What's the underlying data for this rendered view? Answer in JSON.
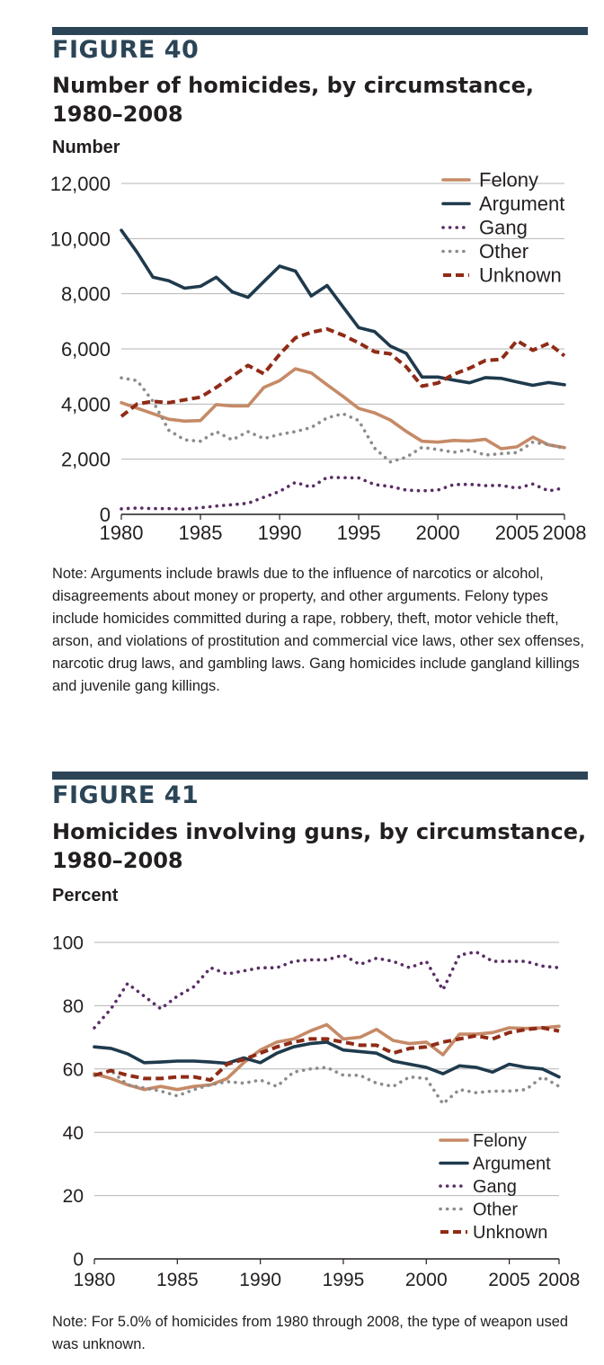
{
  "figures": [
    {
      "number": "FIGURE 40",
      "title": "Number of homicides, by circumstance, 1980–2008",
      "unit": "Number",
      "note": "Note: Arguments include brawls due to the influence of narcotics or alcohol, disagreements about money or property, and other arguments. Felony types include homicides committed during a rape, robbery, theft, motor vehicle theft, arson, and violations of prostitution and commercial vice laws, other sex offenses, narcotic drug laws, and gambling laws. Gang homicides include gangland killings and juvenile gang killings."
    },
    {
      "number": "FIGURE 41",
      "title": "Homicides involving guns, by circumstance, 1980–2008",
      "unit": "Percent",
      "note": "Note: For 5.0% of homicides from 1980 through 2008, the type of weapon used was unknown."
    }
  ],
  "colors": {
    "bar": "#2b4557",
    "felony": "#c68a67",
    "argument": "#1f3a4d",
    "gang": "#5a2d66",
    "other": "#8c8c8c",
    "unknown": "#8f2b16"
  },
  "chart_data": [
    {
      "type": "line",
      "title": "Number of homicides, by circumstance, 1980–2008",
      "ylabel": "Number",
      "x": [
        1980,
        1981,
        1982,
        1983,
        1984,
        1985,
        1986,
        1987,
        1988,
        1989,
        1990,
        1991,
        1992,
        1993,
        1994,
        1995,
        1996,
        1997,
        1998,
        1999,
        2000,
        2001,
        2002,
        2003,
        2004,
        2005,
        2006,
        2007,
        2008
      ],
      "xticks": [
        "1980",
        "1985",
        "1990",
        "1995",
        "2000",
        "2005",
        "2008"
      ],
      "xtick_values": [
        1980,
        1985,
        1990,
        1995,
        2000,
        2005,
        2008
      ],
      "yticks": [
        "0",
        "2,000",
        "4,000",
        "6,000",
        "8,000",
        "10,000",
        "12,000"
      ],
      "ylim": [
        0,
        12000
      ],
      "grid": true,
      "legend_position": "top-right",
      "series": [
        {
          "name": "Felony",
          "style": "solid",
          "color": "#c68a67",
          "values": [
            4050,
            3850,
            3650,
            3450,
            3380,
            3400,
            3980,
            3930,
            3930,
            4600,
            4850,
            5280,
            5130,
            4700,
            4280,
            3840,
            3680,
            3420,
            3010,
            2650,
            2620,
            2680,
            2660,
            2720,
            2380,
            2450,
            2800,
            2520,
            2420
          ]
        },
        {
          "name": "Argument",
          "style": "solid",
          "color": "#1f3a4d",
          "values": [
            10300,
            9500,
            8600,
            8470,
            8200,
            8270,
            8600,
            8070,
            7870,
            8440,
            9000,
            8820,
            7920,
            8300,
            7530,
            6770,
            6630,
            6100,
            5840,
            4980,
            4980,
            4870,
            4770,
            4960,
            4930,
            4800,
            4680,
            4780,
            4700
          ]
        },
        {
          "name": "Gang",
          "style": "dotted",
          "color": "#5a2d66",
          "values": [
            200,
            230,
            210,
            210,
            190,
            240,
            300,
            350,
            400,
            620,
            830,
            1160,
            980,
            1340,
            1330,
            1320,
            1080,
            1010,
            880,
            850,
            880,
            1080,
            1090,
            1040,
            1050,
            950,
            1100,
            850,
            960
          ]
        },
        {
          "name": "Other",
          "style": "dotted",
          "color": "#8c8c8c",
          "values": [
            4950,
            4850,
            4100,
            3050,
            2700,
            2650,
            3000,
            2700,
            3000,
            2750,
            2900,
            3000,
            3150,
            3500,
            3650,
            3400,
            2400,
            1900,
            2070,
            2430,
            2350,
            2250,
            2340,
            2150,
            2200,
            2240,
            2620,
            2530,
            2400
          ]
        },
        {
          "name": "Unknown",
          "style": "dashed",
          "color": "#8f2b16",
          "values": [
            3550,
            4000,
            4100,
            4050,
            4150,
            4250,
            4600,
            5000,
            5400,
            5100,
            5800,
            6400,
            6600,
            6720,
            6500,
            6220,
            5900,
            5820,
            5350,
            4650,
            4760,
            5080,
            5300,
            5580,
            5620,
            6300,
            5950,
            6200,
            5750
          ]
        }
      ]
    },
    {
      "type": "line",
      "title": "Homicides involving guns, by circumstance, 1980–2008",
      "ylabel": "Percent",
      "x": [
        1980,
        1981,
        1982,
        1983,
        1984,
        1985,
        1986,
        1987,
        1988,
        1989,
        1990,
        1991,
        1992,
        1993,
        1994,
        1995,
        1996,
        1997,
        1998,
        1999,
        2000,
        2001,
        2002,
        2003,
        2004,
        2005,
        2006,
        2007,
        2008
      ],
      "xticks": [
        "1980",
        "1985",
        "1990",
        "1995",
        "2000",
        "2005",
        "2008"
      ],
      "xtick_values": [
        1980,
        1985,
        1990,
        1995,
        2000,
        2005,
        2008
      ],
      "yticks": [
        "0",
        "20",
        "40",
        "60",
        "80",
        "100"
      ],
      "ylim": [
        0,
        100
      ],
      "grid": true,
      "legend_position": "bottom-right",
      "series": [
        {
          "name": "Felony",
          "style": "solid",
          "color": "#c68a67",
          "values": [
            58.5,
            57,
            55,
            53.5,
            54.5,
            53.5,
            54.5,
            55,
            57,
            62,
            66,
            68.5,
            69.5,
            72,
            74,
            69.5,
            70,
            72.5,
            69,
            68,
            68.5,
            64.5,
            71,
            71,
            71.5,
            73,
            72.8,
            73,
            73.5
          ]
        },
        {
          "name": "Argument",
          "style": "solid",
          "color": "#1f3a4d",
          "values": [
            67,
            66.5,
            64.8,
            62,
            62.2,
            62.5,
            62.5,
            62.2,
            61.8,
            63.5,
            62,
            65,
            67,
            68,
            68.5,
            66,
            65.5,
            65,
            62.5,
            61.5,
            60.5,
            58.5,
            61,
            60.5,
            59,
            61.5,
            60.5,
            60,
            57.5
          ]
        },
        {
          "name": "Gang",
          "style": "dotted",
          "color": "#5a2d66",
          "values": [
            73,
            79,
            87,
            83,
            79,
            83,
            86,
            92,
            90,
            91,
            92,
            92,
            94,
            94.5,
            94.5,
            96,
            93,
            95,
            94,
            92,
            94,
            85,
            96,
            97,
            94,
            94,
            94,
            92.5,
            92
          ]
        },
        {
          "name": "Other",
          "style": "dotted",
          "color": "#8c8c8c",
          "values": [
            58,
            59.5,
            55,
            54,
            53,
            51.5,
            53.5,
            55,
            56,
            55.5,
            56.5,
            54.5,
            59,
            60,
            60.5,
            58,
            58,
            55.5,
            54.5,
            57.5,
            57,
            49,
            53.5,
            52.5,
            53,
            53,
            53.5,
            57.5,
            54.5
          ]
        },
        {
          "name": "Unknown",
          "style": "dashed",
          "color": "#8f2b16",
          "values": [
            58,
            59.5,
            58,
            57,
            57,
            57.5,
            57.5,
            56.5,
            61.5,
            63,
            65,
            67,
            68.5,
            69.5,
            69.5,
            68.5,
            67.5,
            67.5,
            65,
            66.5,
            67,
            68.5,
            69.5,
            70.5,
            69.5,
            71.5,
            72.5,
            73,
            72
          ]
        }
      ]
    }
  ]
}
